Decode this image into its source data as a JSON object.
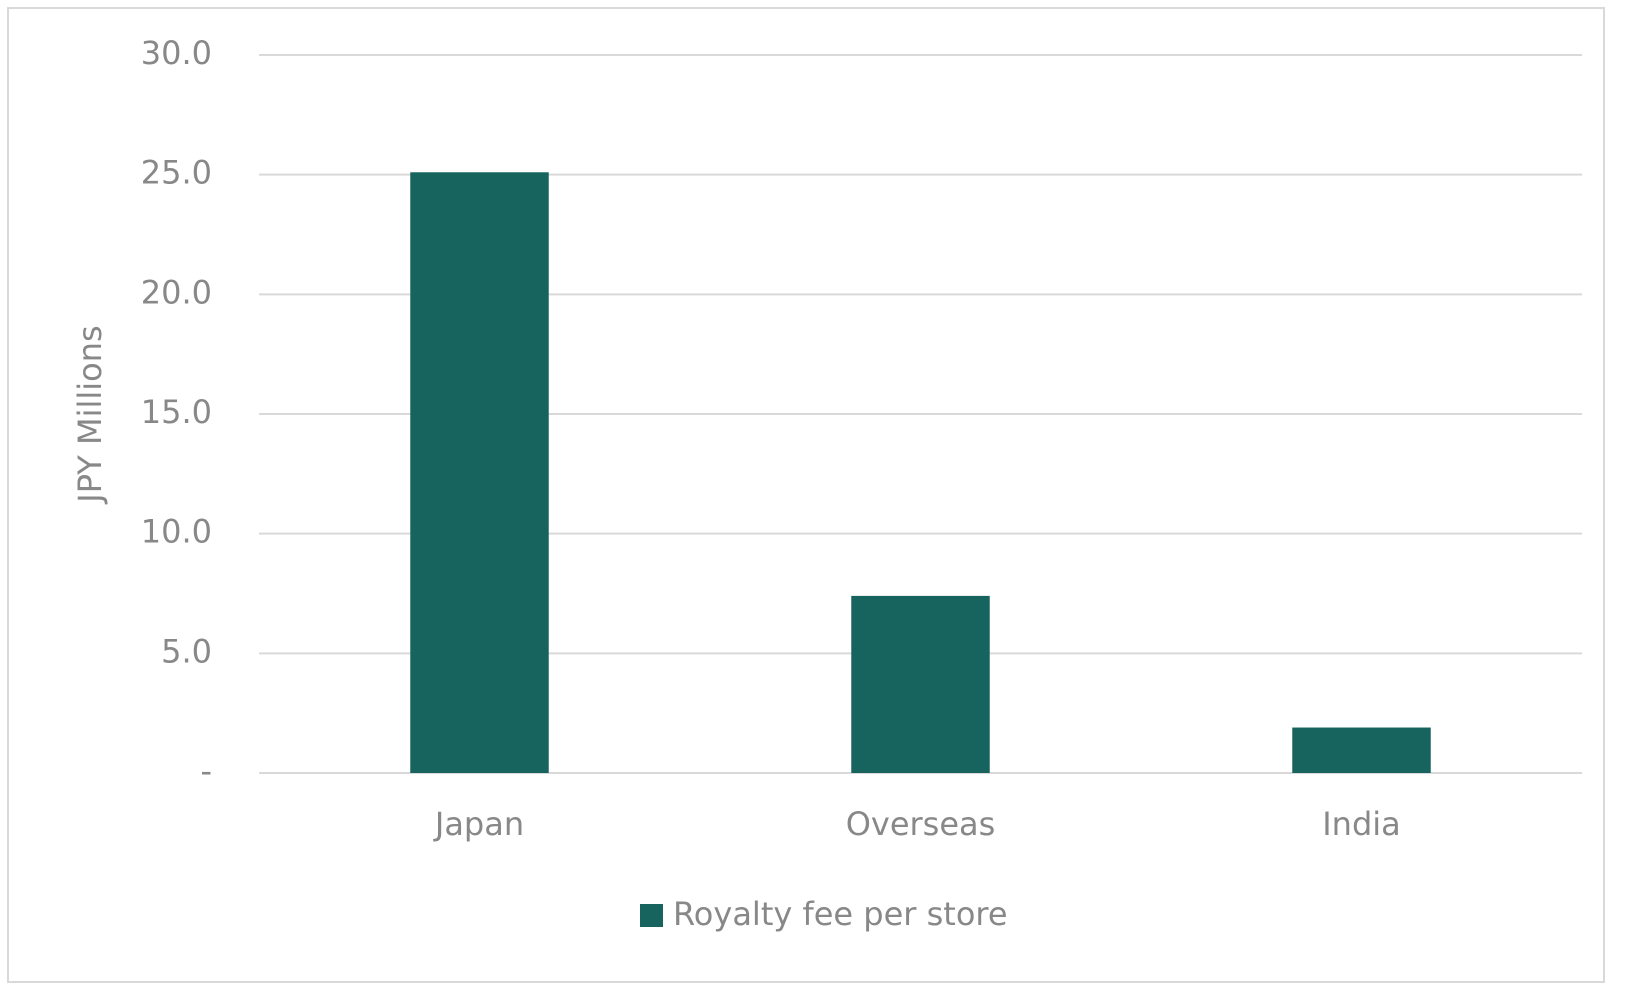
{
  "chart_data": {
    "type": "bar",
    "y_label": "JPY Millions",
    "categories": [
      "Japan",
      "Overseas",
      "India"
    ],
    "series": [
      {
        "name": "Royalty fee per store",
        "color": "#17645f",
        "values": [
          25.1,
          7.4,
          1.9
        ]
      }
    ],
    "ylim": [
      0,
      30
    ],
    "yticks": [
      {
        "value": 0,
        "label": "-"
      },
      {
        "value": 5,
        "label": "5.0"
      },
      {
        "value": 10,
        "label": "10.0"
      },
      {
        "value": 15,
        "label": "15.0"
      },
      {
        "value": 20,
        "label": "20.0"
      },
      {
        "value": 25,
        "label": "25.0"
      },
      {
        "value": 30,
        "label": "30.0"
      }
    ],
    "grid": true,
    "legend": "bottom"
  }
}
